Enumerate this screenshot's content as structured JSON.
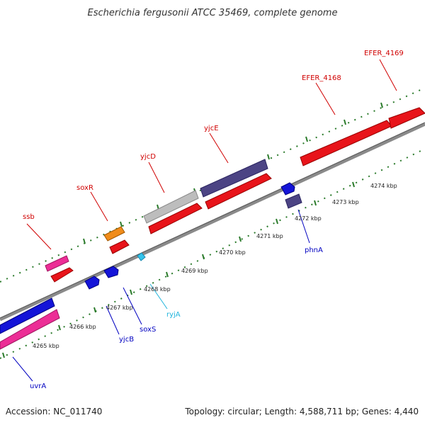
{
  "title": "Escherichia fergusonii ATCC 35469, complete genome",
  "footer": {
    "accession": "Accession: NC_011740",
    "summary": "Topology: circular; Length: 4,588,711 bp; Genes: 4,440"
  },
  "colors": {
    "backbone": "#8a8a8a",
    "tick": "#2a7a2a",
    "red_gene": "#e8141a",
    "pink_gene": "#ec2e96",
    "blue_gene": "#1414d8",
    "purple_gene": "#4c4484",
    "grey_gene": "#bdbdbd",
    "orange_gene": "#f08c1a",
    "cyan_gene": "#34c4ec",
    "label_red": "#d00000",
    "label_blue": "#0000c0",
    "label_cyan": "#20b4dc"
  },
  "ticks": [
    {
      "label": "4265 kbp"
    },
    {
      "label": "4266 kbp"
    },
    {
      "label": "4267 kbp"
    },
    {
      "label": "4268 kbp"
    },
    {
      "label": "4269 kbp"
    },
    {
      "label": "4270 kbp"
    },
    {
      "label": "4271 kbp"
    },
    {
      "label": "4272 kbp"
    },
    {
      "label": "4273 kbp"
    },
    {
      "label": "4274 kbp"
    }
  ],
  "labels": {
    "ssb": "ssb",
    "soxR": "soxR",
    "yjcD": "yjcD",
    "yjcE": "yjcE",
    "EFER_4168": "EFER_4168",
    "EFER_4169": "EFER_4169",
    "uvrA": "uvrA",
    "yjcB": "yjcB",
    "soxS": "soxS",
    "ryjA": "ryjA",
    "phnA": "phnA"
  }
}
